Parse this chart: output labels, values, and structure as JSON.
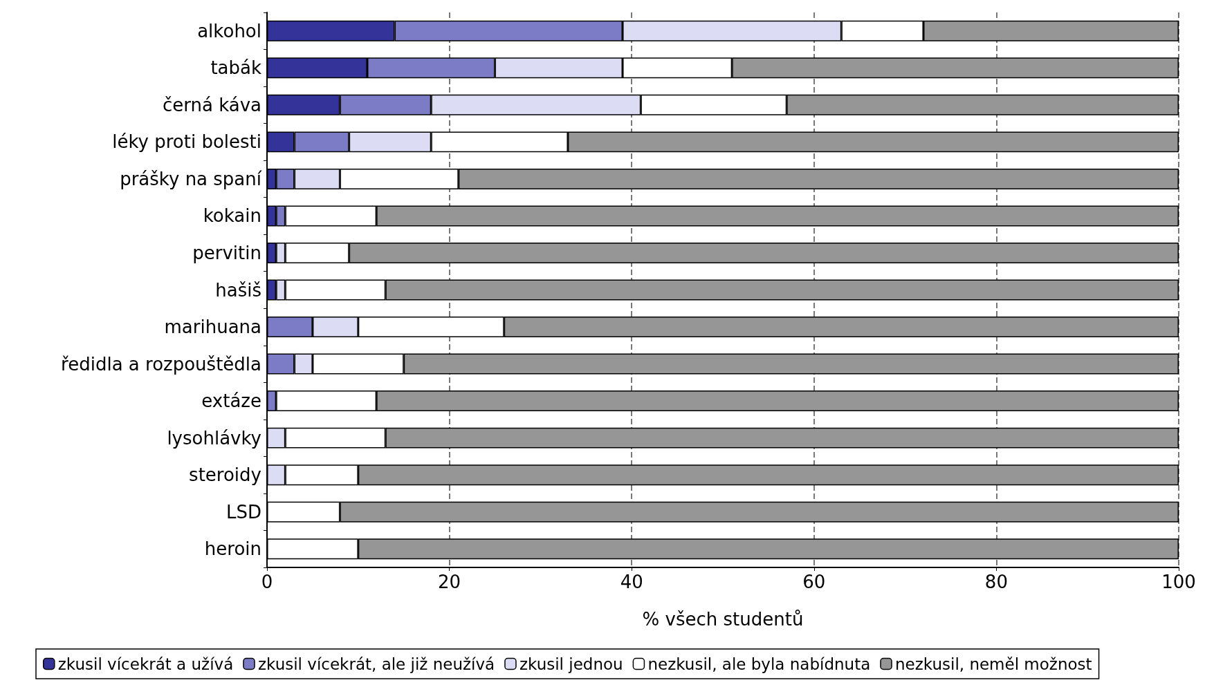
{
  "chart_data": {
    "type": "bar",
    "orientation": "horizontal",
    "stacked": true,
    "xlabel": "% všech studentů",
    "categories": [
      "alkohol",
      "tabák",
      "černá káva",
      "léky proti bolesti",
      "prášky na spaní",
      "kokain",
      "pervitin",
      "hašiš",
      "marihuana",
      "ředidla a rozpouštědla",
      "extáze",
      "lysohlávky",
      "steroidy",
      "LSD",
      "heroin"
    ],
    "series": [
      {
        "name": "zkusil vícekrát a užívá",
        "color": "#333399",
        "values": [
          14,
          11,
          8,
          3,
          1,
          1,
          1,
          1,
          0,
          0,
          0,
          0,
          0,
          0,
          0
        ]
      },
      {
        "name": "zkusil vícekrát, ale již neužívá",
        "color": "#7b7bc6",
        "values": [
          25,
          14,
          10,
          6,
          2,
          1,
          0,
          0,
          5,
          3,
          1,
          0,
          0,
          0,
          0
        ]
      },
      {
        "name": "zkusil jednou",
        "color": "#dcdcf4",
        "values": [
          24,
          14,
          23,
          9,
          5,
          0,
          1,
          1,
          5,
          2,
          0,
          2,
          2,
          0,
          0
        ]
      },
      {
        "name": "nezkusil, ale byla nabídnuta",
        "color": "#ffffff",
        "values": [
          9,
          12,
          16,
          15,
          13,
          10,
          7,
          11,
          16,
          10,
          11,
          11,
          8,
          8,
          10
        ]
      },
      {
        "name": "nezkusil, neměl možnost",
        "color": "#969696",
        "values": [
          28,
          49,
          43,
          67,
          79,
          88,
          91,
          87,
          74,
          85,
          88,
          87,
          90,
          92,
          90
        ]
      }
    ],
    "xlim": [
      0,
      100
    ],
    "xticks": [
      0,
      20,
      40,
      60,
      80,
      100
    ],
    "grid": "x",
    "legend": "bottom"
  }
}
